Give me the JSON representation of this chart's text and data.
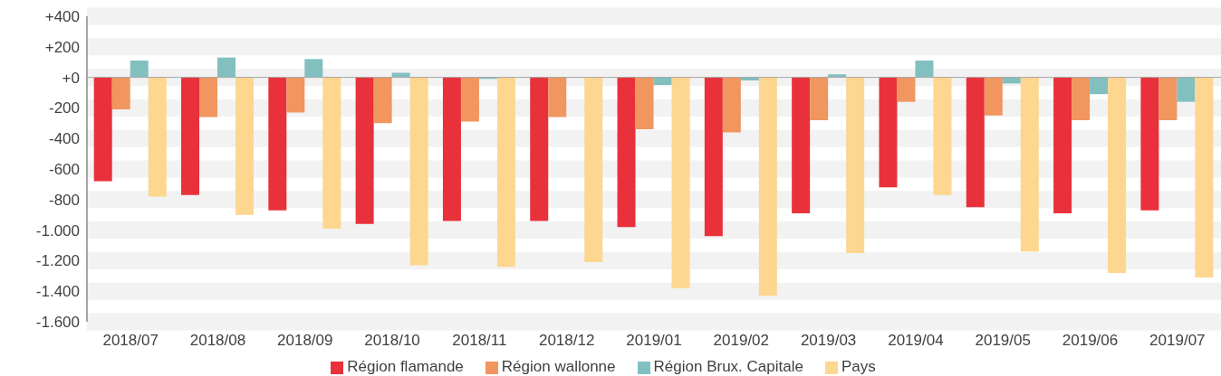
{
  "chart_data": {
    "type": "bar",
    "categories": [
      "2018/07",
      "2018/08",
      "2018/09",
      "2018/10",
      "2018/11",
      "2018/12",
      "2019/01",
      "2019/02",
      "2019/03",
      "2019/04",
      "2019/05",
      "2019/06",
      "2019/07"
    ],
    "series": [
      {
        "name": "Région flamande",
        "color": "#e8313a",
        "values": [
          -680,
          -770,
          -870,
          -960,
          -940,
          -940,
          -980,
          -1040,
          -890,
          -720,
          -850,
          -890,
          -870
        ]
      },
      {
        "name": "Région wallonne",
        "color": "#f0965e",
        "values": [
          -210,
          -260,
          -230,
          -300,
          -290,
          -260,
          -340,
          -360,
          -280,
          -160,
          -250,
          -280,
          -280
        ]
      },
      {
        "name": "Région Brux. Capitale",
        "color": "#82bfbf",
        "values": [
          110,
          130,
          120,
          30,
          -10,
          0,
          -50,
          -20,
          20,
          110,
          -40,
          -110,
          -160
        ]
      },
      {
        "name": "Pays",
        "color": "#fdd68f",
        "values": [
          -780,
          -900,
          -990,
          -1230,
          -1240,
          -1210,
          -1380,
          -1430,
          -1150,
          -770,
          -1140,
          -1280,
          -1310
        ]
      }
    ],
    "ylim": [
      -1600,
      400
    ],
    "yticks": [
      {
        "value": 400,
        "label": "+400"
      },
      {
        "value": 200,
        "label": "+200"
      },
      {
        "value": 0,
        "label": "+0"
      },
      {
        "value": -200,
        "label": "-200"
      },
      {
        "value": -400,
        "label": "-400"
      },
      {
        "value": -600,
        "label": "-600"
      },
      {
        "value": -800,
        "label": "-800"
      },
      {
        "value": -1000,
        "label": "-1.000"
      },
      {
        "value": -1200,
        "label": "-1.200"
      },
      {
        "value": -1400,
        "label": "-1.400"
      },
      {
        "value": -1600,
        "label": "-1.600"
      }
    ],
    "ref_lines": [
      {
        "axis": "y",
        "value": 0,
        "color": "#a6a6a6"
      }
    ],
    "grid": "y",
    "legend": "bottom"
  }
}
